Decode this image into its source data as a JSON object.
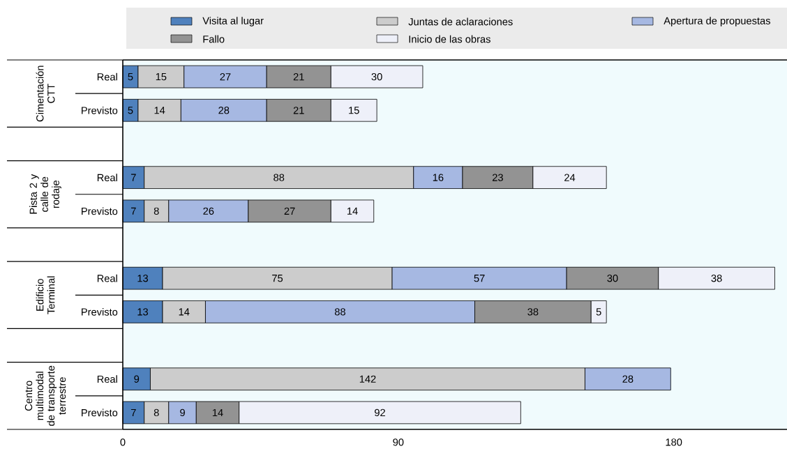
{
  "chart_data": {
    "type": "bar",
    "orientation": "horizontal",
    "stacked": true,
    "categories": [
      "Real",
      "Previsto",
      null,
      "Real",
      "Previsto",
      null,
      "Real",
      "Previsto",
      null,
      "Real",
      "Previsto"
    ],
    "series": [
      {
        "name": "Visita al lugar",
        "color": "#4f81bd",
        "values": [
          5,
          5,
          null,
          7,
          7,
          null,
          13,
          13,
          null,
          9,
          7
        ]
      },
      {
        "name": "Juntas de aclaraciones",
        "color": "#cccccc",
        "values": [
          15,
          14,
          null,
          88,
          8,
          null,
          75,
          14,
          null,
          142,
          8
        ]
      },
      {
        "name": "Apertura de propuestas",
        "color": "#a6b8e2",
        "values": [
          27,
          28,
          null,
          16,
          26,
          null,
          57,
          88,
          null,
          28,
          9
        ]
      },
      {
        "name": "Fallo",
        "color": "#939393",
        "values": [
          21,
          21,
          null,
          23,
          27,
          null,
          30,
          38,
          null,
          null,
          14
        ]
      },
      {
        "name": "Inicio de las obras",
        "color": "#eef0f9",
        "values": [
          30,
          15,
          null,
          24,
          14,
          null,
          38,
          5,
          null,
          null,
          92
        ]
      }
    ],
    "xlim": [
      0,
      217
    ],
    "xticks": [
      0,
      90,
      180
    ],
    "data_labels": true,
    "legend": "top",
    "annotations": [
      "Cimentación CTT",
      "Pista 2 y calle de rodaje",
      "Edificio Terminal",
      "Centro multimodal de transporte terrestre"
    ]
  }
}
